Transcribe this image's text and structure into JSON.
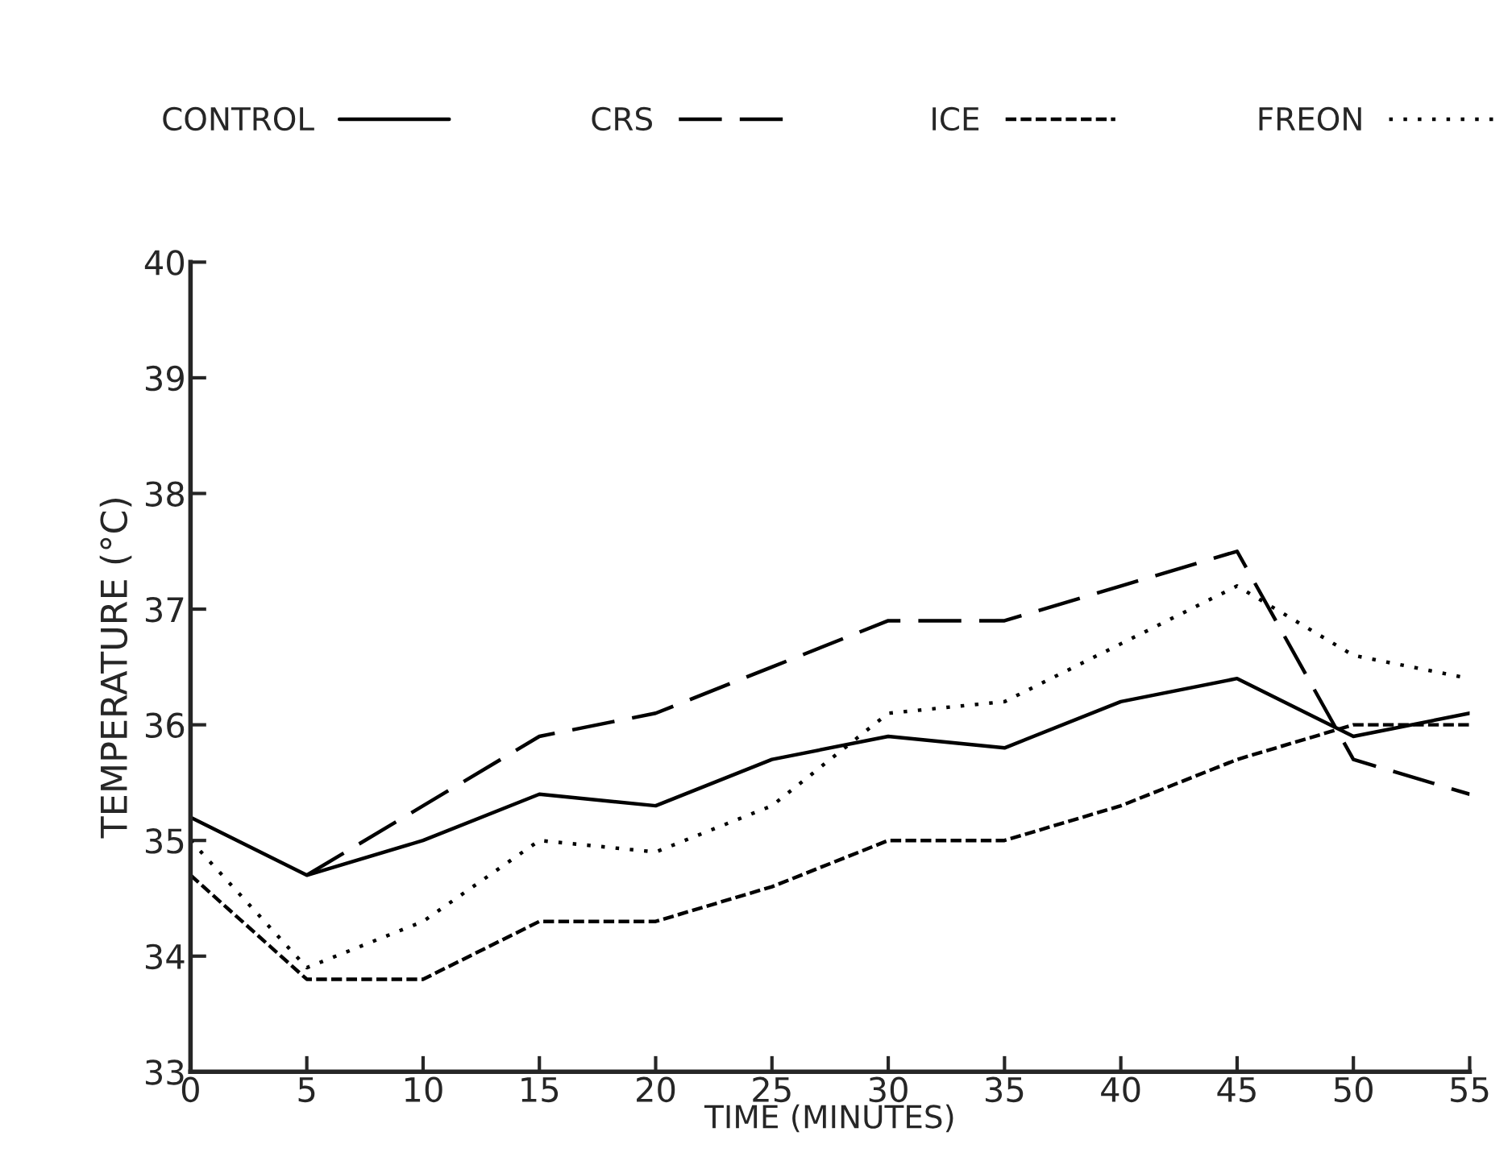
{
  "chart_data": {
    "type": "line",
    "xlabel": "TIME (MINUTES)",
    "ylabel": "TEMPERATURE (°C)",
    "x": [
      0,
      5,
      10,
      15,
      20,
      25,
      30,
      35,
      40,
      45,
      50,
      55
    ],
    "series": [
      {
        "name": "CONTROL",
        "color": "#000000",
        "line_style": "solid",
        "values": [
          35.2,
          34.7,
          35.0,
          35.4,
          35.3,
          35.7,
          35.9,
          35.8,
          36.2,
          36.4,
          35.9,
          36.1
        ]
      },
      {
        "name": "CRS",
        "color": "#000000",
        "line_style": "dashed",
        "values": [
          null,
          34.7,
          35.3,
          35.9,
          36.1,
          36.5,
          36.9,
          36.9,
          37.2,
          37.5,
          35.7,
          35.4
        ]
      },
      {
        "name": "ICE",
        "color": "#000000",
        "line_style": "densely dashed",
        "values": [
          34.7,
          33.8,
          33.8,
          34.3,
          34.3,
          34.6,
          35.0,
          35.0,
          35.3,
          35.7,
          36.0,
          36.0
        ]
      },
      {
        "name": "FREON",
        "color": "#000000",
        "line_style": "dotted",
        "values": [
          35.0,
          33.9,
          34.3,
          35.0,
          34.9,
          35.3,
          36.1,
          36.2,
          36.7,
          37.2,
          36.6,
          36.4
        ]
      }
    ],
    "xlim": [
      0,
      55
    ],
    "xticks": [
      0,
      5,
      10,
      15,
      20,
      25,
      30,
      35,
      40,
      45,
      50,
      55
    ],
    "ylim": [
      33,
      40
    ],
    "yticks": [
      33,
      34,
      35,
      36,
      37,
      38,
      39,
      40
    ],
    "grid": false,
    "legend": "top"
  }
}
